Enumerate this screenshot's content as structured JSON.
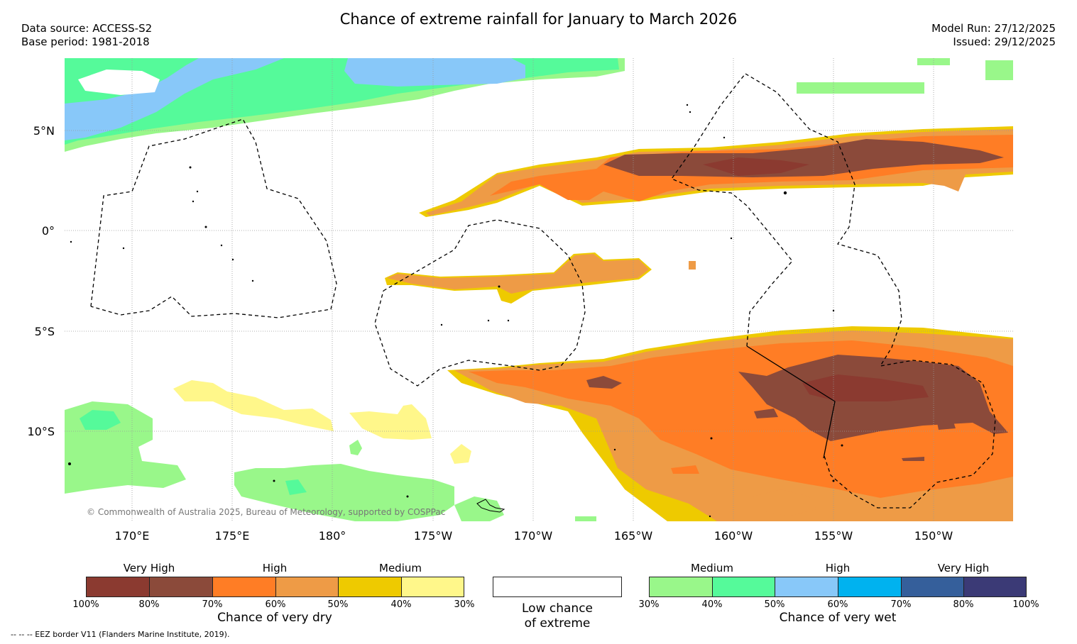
{
  "title": "Chance of extreme rainfall for January to March 2026",
  "meta": {
    "data_source": "Data source: ACCESS-S2",
    "base_period": "Base period: 1981-2018",
    "model_run": "Model Run: 27/12/2025",
    "issued": "Issued: 29/12/2025"
  },
  "map": {
    "lat_labels": [
      "5°N",
      "0°",
      "5°S",
      "10°S"
    ],
    "lon_labels": [
      "170°E",
      "175°E",
      "180°",
      "175°W",
      "170°W",
      "165°W",
      "160°W",
      "155°W",
      "150°W"
    ],
    "credit": "© Commonwealth of Australia 2025, Bureau of Meteorology, supported by COSPPac"
  },
  "colors": {
    "dry_very_high_1": "#8b3a30",
    "dry_very_high_2": "#8b4a3a",
    "dry_high_1": "#ff7d25",
    "dry_high_2": "#ee9b46",
    "dry_medium_1": "#eeca00",
    "dry_medium_2": "#fff78a",
    "wet_medium_1": "#99f78a",
    "wet_medium_2": "#55fa9a",
    "wet_high_1": "#88c8f9",
    "wet_high_2": "#00b2ef",
    "wet_very_high_1": "#355f9b",
    "wet_very_high_2": "#3b3a76"
  },
  "legend_dry": {
    "headings": [
      "Very High",
      "High",
      "Medium"
    ],
    "ticks": [
      "100%",
      "80%",
      "70%",
      "60%",
      "50%",
      "40%",
      "30%"
    ],
    "caption": "Chance of very dry"
  },
  "legend_low": {
    "caption_line1": "Low chance",
    "caption_line2": "of extreme"
  },
  "legend_wet": {
    "headings": [
      "Medium",
      "High",
      "Very High"
    ],
    "ticks": [
      "30%",
      "40%",
      "50%",
      "60%",
      "70%",
      "80%",
      "100%"
    ],
    "caption": "Chance of very wet"
  },
  "footnote": "-- -- -- EEZ border V11 (Flanders Marine Institute, 2019)."
}
